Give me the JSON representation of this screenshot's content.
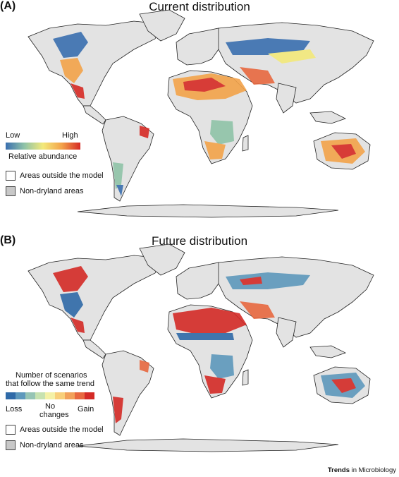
{
  "panel_a": {
    "letter": "(A)",
    "title": "Current distribution",
    "legend": {
      "low_label": "Low",
      "high_label": "High",
      "caption": "Relative abundance",
      "gradient_colors": [
        "#3a6fb0",
        "#8fc3a8",
        "#f3e97a",
        "#f3a34a",
        "#d62a25"
      ]
    },
    "key_outside": "Areas outside the model",
    "key_nondryland": "Non-dryland areas"
  },
  "panel_b": {
    "letter": "(B)",
    "title": "Future distribution",
    "legend": {
      "caption_line1": "Number of scenarios",
      "caption_line2": "that follow the same trend",
      "loss_label": "Loss",
      "no_change_line1": "No",
      "no_change_line2": "changes",
      "gain_label": "Gain",
      "class_colors": [
        "#2f6aa8",
        "#5d98bc",
        "#96c4b4",
        "#c7e2b0",
        "#f4f1a6",
        "#f8cf7a",
        "#f2a15a",
        "#e8683f",
        "#d42a26"
      ]
    },
    "key_outside": "Areas outside the model",
    "key_nondryland": "Non-dryland areas"
  },
  "colors": {
    "land": "#e3e3e3",
    "coast": "#222222",
    "ocean": "#ffffff",
    "nondryland": "#c8c8c8"
  },
  "footer": {
    "brand_bold": "Trends",
    "brand_rest": " in Microbiology"
  }
}
